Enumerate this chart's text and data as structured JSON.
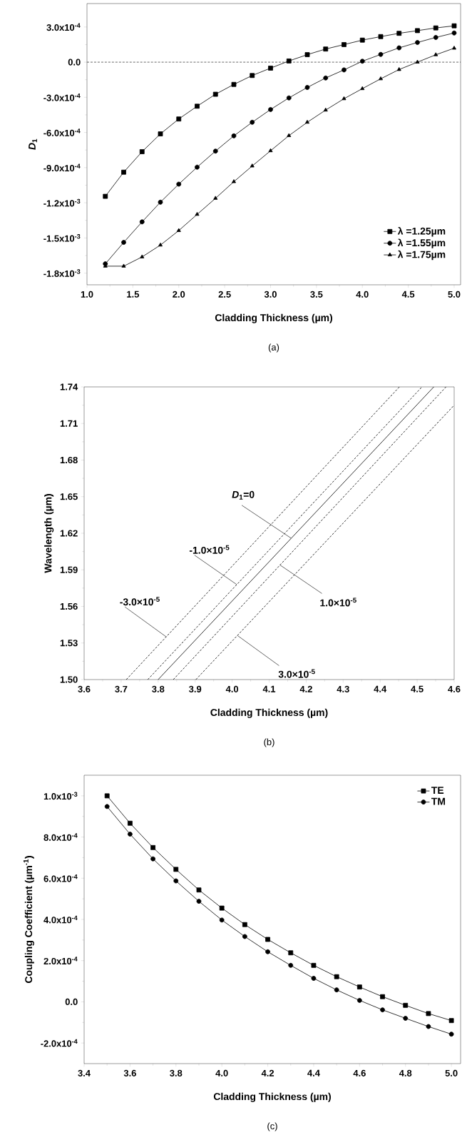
{
  "chart_data": [
    {
      "type": "line",
      "xlabel": "Cladding Thickness (µm)",
      "ylabel": "*D*$_{1}$",
      "annotations": [
        "(a)"
      ],
      "x": [
        1.2,
        1.4,
        1.6,
        1.8,
        2.0,
        2.2,
        2.4,
        2.6,
        2.8,
        3.0,
        3.2,
        3.4,
        3.6,
        3.8,
        4.0,
        4.2,
        4.4,
        4.6,
        4.8,
        5.0
      ],
      "series": [
        {
          "name": "λ =1.25µm",
          "color": "#000000",
          "marker": "square",
          "values": [
            -0.001145,
            -0.000939,
            -0.000764,
            -0.000612,
            -0.000485,
            -0.000376,
            -0.000274,
            -0.00019,
            -0.000114,
            -5.1e-05,
            1e-05,
            6.4e-05,
            0.000112,
            0.00015,
            0.000188,
            0.000218,
            0.000246,
            0.000269,
            0.000292,
            0.00031
          ]
        },
        {
          "name": "λ =1.55µm",
          "color": "#000000",
          "marker": "circle",
          "values": [
            -0.001721,
            -0.001538,
            -0.001363,
            -0.001195,
            -0.001041,
            -0.000896,
            -0.000759,
            -0.000629,
            -0.000513,
            -0.000404,
            -0.000305,
            -0.000216,
            -0.000135,
            -6.6e-05,
            8e-06,
            6.6e-05,
            0.000122,
            0.000168,
            0.000211,
            0.000249
          ]
        },
        {
          "name": "λ =1.75µm",
          "color": "#000000",
          "marker": "triangle",
          "values": [
            -0.001741,
            -0.001741,
            -0.001662,
            -0.001561,
            -0.001437,
            -0.001299,
            -0.001162,
            -0.00102,
            -0.000886,
            -0.000756,
            -0.000627,
            -0.000513,
            -0.000409,
            -0.000312,
            -0.000226,
            -0.000142,
            -6.3e-05,
            0.0,
            6.3e-05,
            0.000119
          ]
        }
      ],
      "xlim": [
        1.0,
        5.07
      ],
      "ylim": [
        -0.0019,
        0.0005
      ],
      "xticks": [
        {
          "value": 1,
          "label": "1.0"
        },
        1.5,
        {
          "value": 2,
          "label": "2.0"
        },
        2.5,
        {
          "value": 3,
          "label": "3.0"
        },
        3.5,
        {
          "value": 4,
          "label": "4.0"
        },
        4.5,
        {
          "value": 5,
          "label": "5.0"
        }
      ],
      "yticks": [
        {
          "value": -0.0018,
          "label": "-1.8x10$^{-3}$"
        },
        {
          "value": -0.0015,
          "label": "-1.5x10$^{-3}$"
        },
        {
          "value": -0.0012,
          "label": "-1.2x10$^{-3}$"
        },
        {
          "value": -0.0009,
          "label": "-9.0x10$^{-4}$"
        },
        {
          "value": -0.0006,
          "label": "-6.0x10$^{-4}$"
        },
        {
          "value": -0.0003,
          "label": "-3.0x10$^{-4}$"
        },
        {
          "value": 0,
          "label": "0.0"
        },
        {
          "value": 0.0003,
          "label": "3.0x10$^{-4}$"
        }
      ],
      "ref_lines": [
        {
          "axis": "y",
          "value": 0,
          "line_style": "dashed"
        }
      ],
      "legend": "bottom right",
      "grid": false
    },
    {
      "type": "line",
      "xlabel": "Cladding Thickness (µm)",
      "ylabel": "Wavelength (µm)",
      "annotations": [
        {
          "text": "-3.0×10$^{-5}$",
          "x": 3.822,
          "y": 1.535
        },
        {
          "text": "-1.0×10$^{-5}$",
          "x": 4.012,
          "y": 1.578
        },
        {
          "text": "*D*$_{1}$=0",
          "x": 4.159,
          "y": 1.616
        },
        {
          "text": "1.0×10$^{-5}$",
          "x": 4.129,
          "y": 1.594
        },
        {
          "text": "3.0×10$^{-5}$",
          "x": 4.015,
          "y": 1.536
        },
        "(b)"
      ],
      "series": [
        {
          "color": "#000000",
          "line_style": "dashed",
          "x": [
            3.714,
            4.452
          ],
          "values": [
            1.5,
            1.74
          ]
        },
        {
          "color": "#000000",
          "line_style": "dashed",
          "x": [
            3.772,
            4.513
          ],
          "values": [
            1.5,
            1.74
          ]
        },
        {
          "color": "#000000",
          "line_style": "solid",
          "x": [
            3.8,
            4.545
          ],
          "values": [
            1.5,
            1.74
          ]
        },
        {
          "color": "#000000",
          "line_style": "dashed",
          "x": [
            3.841,
            4.578
          ],
          "values": [
            1.5,
            1.74
          ]
        },
        {
          "color": "#000000",
          "line_style": "dashed",
          "x": [
            3.902,
            4.6
          ],
          "values": [
            1.5,
            1.725
          ]
        }
      ],
      "xlim": [
        3.6,
        4.6
      ],
      "ylim": [
        1.5,
        1.74
      ],
      "xticks": [
        3.6,
        3.7,
        3.8,
        3.9,
        {
          "value": 4,
          "label": "4.0"
        },
        4.1,
        4.2,
        4.3,
        4.4,
        4.5,
        4.6
      ],
      "yticks": [
        {
          "value": 1.5,
          "label": "1.50"
        },
        1.53,
        1.56,
        1.59,
        1.62,
        1.65,
        1.68,
        1.71,
        1.74
      ],
      "legend": false,
      "grid": false
    },
    {
      "type": "line",
      "xlabel": "Cladding Thickness (µm)",
      "ylabel": "Coupling Coefficient (µm$^{-1}$)",
      "annotations": [
        "(c)"
      ],
      "x": [
        3.5,
        3.6,
        3.7,
        3.8,
        3.9,
        4.0,
        4.1,
        4.2,
        4.3,
        4.4,
        4.5,
        4.6,
        4.7,
        4.8,
        4.9,
        5.0
      ],
      "series": [
        {
          "name": "TE",
          "color": "#000000",
          "marker": "square",
          "values": [
            0.001,
            0.000867,
            0.000749,
            0.000643,
            0.000543,
            0.000455,
            0.000375,
            0.000303,
            0.000238,
            0.000177,
            0.000122,
            7.2e-05,
            2.5e-05,
            -1.7e-05,
            -5.7e-05,
            -9.1e-05
          ]
        },
        {
          "name": "TM",
          "color": "#000000",
          "marker": "circle",
          "values": [
            0.000948,
            0.000814,
            0.000694,
            0.000587,
            0.000488,
            0.000397,
            0.000317,
            0.000243,
            0.000177,
            0.000114,
            5.8e-05,
            7e-06,
            -3.9e-05,
            -8e-05,
            -0.00012,
            -0.000157
          ]
        }
      ],
      "xlim": [
        3.4,
        5.04
      ],
      "ylim": [
        -0.0003,
        0.0011
      ],
      "xticks": [
        3.4,
        3.6,
        3.8,
        {
          "value": 4,
          "label": "4.0"
        },
        4.2,
        4.4,
        4.6,
        4.8,
        {
          "value": 5,
          "label": "5.0"
        }
      ],
      "yticks": [
        {
          "value": -0.0002,
          "label": "-2.0x10$^{-4}$"
        },
        {
          "value": 0,
          "label": "0.0"
        },
        {
          "value": 0.0002,
          "label": "2.0x10$^{-4}$"
        },
        {
          "value": 0.0004,
          "label": "4.0x10$^{-4}$"
        },
        {
          "value": 0.0006,
          "label": "6.0x10$^{-4}$"
        },
        {
          "value": 0.0008,
          "label": "8.0x10$^{-4}$"
        },
        {
          "value": 0.001,
          "label": "1.0x10$^{-3}$"
        }
      ],
      "legend": "top right",
      "grid": false
    }
  ]
}
